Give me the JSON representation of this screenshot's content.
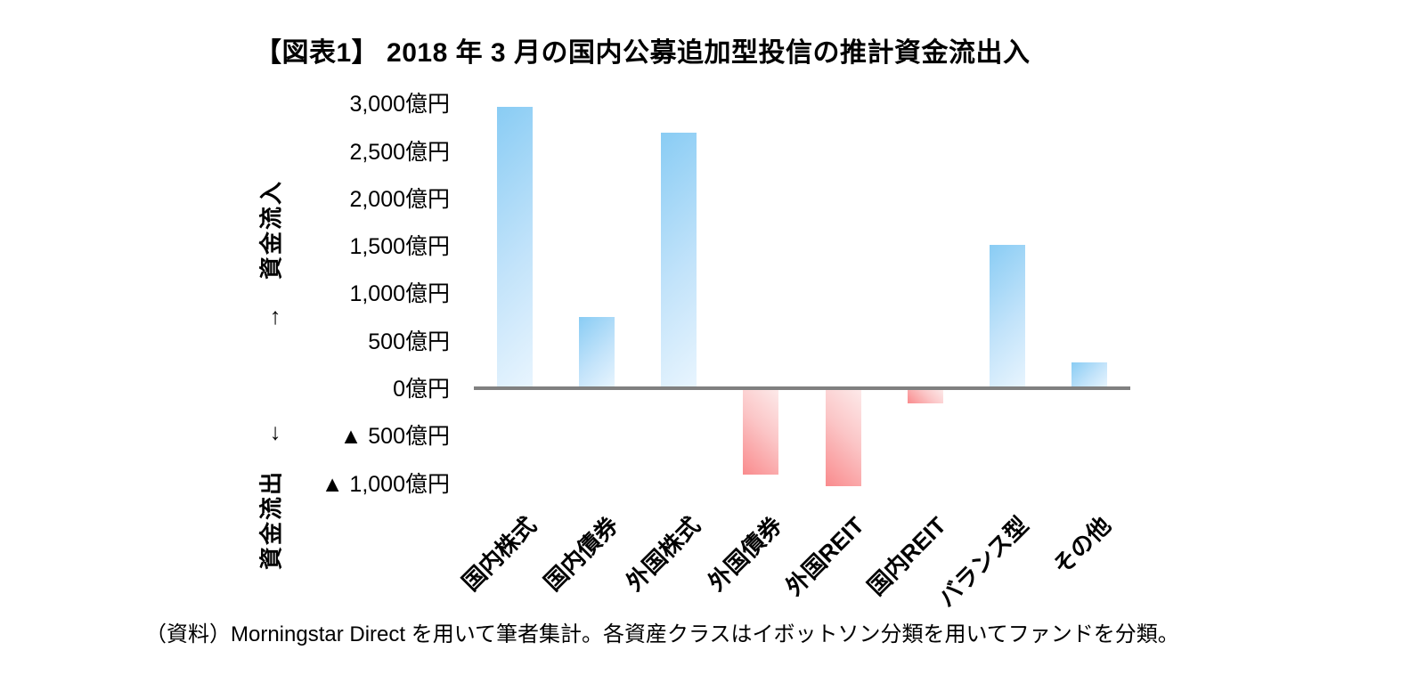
{
  "title": "【図表1】 2018 年 3 月の国内公募追加型投信の推計資金流出入",
  "source_note": "（資料）Morningstar Direct を用いて筆者集計。各資産クラスはイボットソン分類を用いてファンドを分類。",
  "y_axis": {
    "inflow_label": "→　資金流入",
    "outflow_label": "資金流出　←",
    "ticks": [
      {
        "label": "3,000億円",
        "value": 3000
      },
      {
        "label": "2,500億円",
        "value": 2500
      },
      {
        "label": "2,000億円",
        "value": 2000
      },
      {
        "label": "1,500億円",
        "value": 1500
      },
      {
        "label": "1,000億円",
        "value": 1000
      },
      {
        "label": "500億円",
        "value": 500
      },
      {
        "label": "0億円",
        "value": 0
      },
      {
        "label": "▲ 500億円",
        "value": -500
      },
      {
        "label": "▲ 1,000億円",
        "value": -1000
      }
    ]
  },
  "chart_data": {
    "type": "bar",
    "title": "【図表1】 2018 年 3 月の国内公募追加型投信の推計資金流出入",
    "unit": "億円",
    "categories": [
      "国内株式",
      "国内債券",
      "外国株式",
      "外国債券",
      "外国REIT",
      "国内REIT",
      "バランス型",
      "その他"
    ],
    "values": [
      2970,
      760,
      2700,
      -900,
      -1020,
      -150,
      1520,
      280
    ],
    "ylim": [
      -1000,
      3000
    ],
    "y_tick_interval": 500,
    "grid": false,
    "legend_position": "none",
    "xlabel": "",
    "ylabel_positive": "資金流入",
    "ylabel_negative": "資金流出",
    "colors": {
      "positive_gradient": [
        "#89CCF4",
        "#E9F5FE"
      ],
      "negative_gradient": [
        "#F98B8D",
        "#FDEAEA"
      ],
      "axis_line": "#808080",
      "text": "#000000",
      "background": "#FFFFFF"
    }
  }
}
